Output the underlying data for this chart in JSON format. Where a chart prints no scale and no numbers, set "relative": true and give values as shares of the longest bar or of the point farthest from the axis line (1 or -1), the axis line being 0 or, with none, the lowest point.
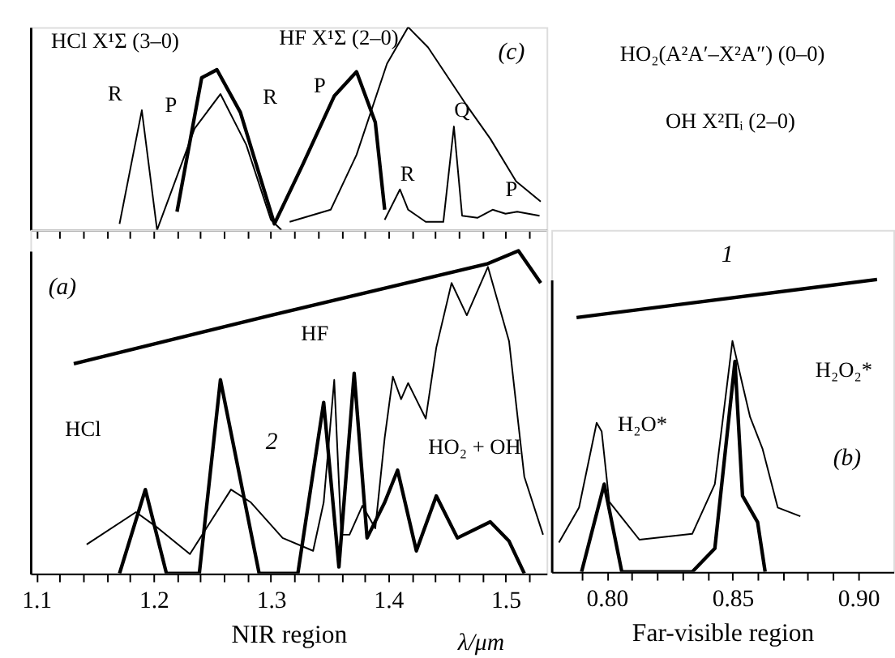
{
  "chart_data": [
    {
      "type": "line",
      "relative": true,
      "tick_labels": false,
      "grid": false,
      "xlim": [
        1.095,
        1.535
      ],
      "xticks": [
        {
          "value": 1.1,
          "label": null
        },
        {
          "value": 1.12,
          "label": null
        },
        {
          "value": 1.14,
          "label": null
        },
        {
          "value": 1.16,
          "label": null
        },
        {
          "value": 1.18,
          "label": null
        },
        {
          "value": 1.2,
          "label": null
        },
        {
          "value": 1.22,
          "label": null
        },
        {
          "value": 1.24,
          "label": null
        },
        {
          "value": 1.26,
          "label": null
        },
        {
          "value": 1.28,
          "label": null
        },
        {
          "value": 1.3,
          "label": null
        },
        {
          "value": 1.32,
          "label": null
        },
        {
          "value": 1.34,
          "label": null
        },
        {
          "value": 1.36,
          "label": null
        },
        {
          "value": 1.38,
          "label": null
        },
        {
          "value": 1.4,
          "label": null
        },
        {
          "value": 1.42,
          "label": null
        },
        {
          "value": 1.44,
          "label": null
        },
        {
          "value": 1.46,
          "label": null
        },
        {
          "value": 1.48,
          "label": null
        },
        {
          "value": 1.5,
          "label": null
        },
        {
          "value": 1.52,
          "label": null
        }
      ],
      "series": [
        {
          "color": "#000000",
          "x": [
            1.171,
            1.19,
            1.203,
            1.235,
            1.257,
            1.279,
            1.3,
            1.309
          ],
          "values": [
            0.03,
            0.59,
            0.0,
            0.5,
            0.67,
            0.42,
            0.05,
            0.0
          ]
        },
        {
          "color": "#000000",
          "x": [
            1.22,
            1.241,
            1.254,
            1.274,
            1.303,
            1.327,
            1.354,
            1.373,
            1.389,
            1.397
          ],
          "values": [
            0.09,
            0.75,
            0.79,
            0.58,
            0.03,
            0.32,
            0.66,
            0.78,
            0.53,
            0.1
          ]
        },
        {
          "color": "#000000",
          "x": [
            1.316,
            1.351,
            1.373,
            1.399,
            1.417,
            1.434,
            1.465,
            1.487,
            1.509,
            1.53
          ],
          "values": [
            0.04,
            0.1,
            0.37,
            0.82,
            1.0,
            0.9,
            0.63,
            0.45,
            0.24,
            0.14
          ]
        },
        {
          "color": "#000000",
          "x": [
            1.397,
            1.41,
            1.417,
            1.432,
            1.447,
            1.456,
            1.463,
            1.476,
            1.489,
            1.5,
            1.51,
            1.529
          ],
          "values": [
            0.05,
            0.2,
            0.1,
            0.04,
            0.04,
            0.51,
            0.07,
            0.06,
            0.1,
            0.08,
            0.09,
            0.07
          ]
        }
      ],
      "annotations": [
        "(c)",
        "HCl X¹Σ (3–0)",
        "HF X¹Σ (2–0)",
        "HO₂(A²A′–X²A″) (0–0)",
        "OH X²Πᵢ (2–0)",
        "R",
        "P",
        "R",
        "P",
        "R",
        "Q",
        "P"
      ]
    },
    {
      "type": "line",
      "relative": true,
      "tick_labels": "x",
      "grid": false,
      "xlabel": "NIR region",
      "xlim": [
        1.095,
        1.535
      ],
      "xticks": [
        1.1,
        {
          "value": 1.12,
          "label": null
        },
        {
          "value": 1.14,
          "label": null
        },
        {
          "value": 1.16,
          "label": null
        },
        {
          "value": 1.18,
          "label": null
        },
        1.2,
        {
          "value": 1.22,
          "label": null
        },
        {
          "value": 1.24,
          "label": null
        },
        {
          "value": 1.26,
          "label": null
        },
        {
          "value": 1.28,
          "label": null
        },
        1.3,
        {
          "value": 1.32,
          "label": null
        },
        {
          "value": 1.34,
          "label": null
        },
        {
          "value": 1.36,
          "label": null
        },
        {
          "value": 1.38,
          "label": null
        },
        1.4,
        {
          "value": 1.42,
          "label": null
        },
        {
          "value": 1.44,
          "label": null
        },
        {
          "value": 1.46,
          "label": null
        },
        {
          "value": 1.48,
          "label": null
        },
        1.5,
        {
          "value": 1.52,
          "label": null
        }
      ],
      "series": [
        {
          "color": "#000000",
          "x": [
            1.132,
            1.3,
            1.485,
            1.511,
            1.53
          ],
          "values": [
            0.65,
            0.8,
            0.96,
            1.0,
            0.9
          ]
        },
        {
          "color": "#000000",
          "x": [
            1.143,
            1.185,
            1.204,
            1.231,
            1.266,
            1.283,
            1.31,
            1.336,
            1.345,
            1.354,
            1.36,
            1.367,
            1.378,
            1.389,
            1.397,
            1.404,
            1.411,
            1.417,
            1.432,
            1.441,
            1.454,
            1.467,
            1.485,
            1.503,
            1.516,
            1.532
          ],
          "values": [
            0.09,
            0.19,
            0.14,
            0.06,
            0.26,
            0.22,
            0.11,
            0.07,
            0.22,
            0.6,
            0.12,
            0.12,
            0.21,
            0.14,
            0.42,
            0.61,
            0.54,
            0.59,
            0.48,
            0.7,
            0.9,
            0.8,
            0.95,
            0.72,
            0.3,
            0.12
          ]
        },
        {
          "color": "#000000",
          "x": [
            1.171,
            1.193,
            1.211,
            1.239,
            1.257,
            1.29,
            1.323,
            1.345,
            1.358,
            1.371,
            1.382,
            1.397,
            1.408,
            1.424,
            1.441,
            1.459,
            1.487,
            1.503,
            1.516
          ],
          "values": [
            0.0,
            0.26,
            0.0,
            0.0,
            0.6,
            0.0,
            0.0,
            0.53,
            0.02,
            0.62,
            0.11,
            0.22,
            0.32,
            0.07,
            0.24,
            0.11,
            0.16,
            0.1,
            0.0
          ]
        }
      ],
      "annotations": [
        "(a)",
        "HCl",
        "HF",
        "2",
        "HO₂ + OH",
        "λ/μm"
      ]
    },
    {
      "type": "line",
      "relative": true,
      "tick_labels": "x",
      "grid": false,
      "xlabel": "Far-visible region",
      "xlim": [
        0.778,
        0.914
      ],
      "xticks": [
        {
          "value": 0.79,
          "label": null
        },
        {
          "value": 0.8,
          "label": "0.80"
        },
        {
          "value": 0.81,
          "label": null
        },
        {
          "value": 0.82,
          "label": null
        },
        {
          "value": 0.83,
          "label": null
        },
        {
          "value": 0.84,
          "label": null
        },
        0.85,
        {
          "value": 0.86,
          "label": null
        },
        {
          "value": 0.87,
          "label": null
        },
        {
          "value": 0.88,
          "label": null
        },
        {
          "value": 0.89,
          "label": null
        },
        {
          "value": 0.9,
          "label": "0.90"
        }
      ],
      "series": [
        {
          "color": "#000000",
          "x": [
            0.788,
            0.9075
          ],
          "values": [
            0.87,
            1.0
          ]
        },
        {
          "color": "#000000",
          "x": [
            0.781,
            0.789,
            0.796,
            0.798,
            0.801,
            0.813,
            0.834,
            0.843,
            0.85,
            0.854,
            0.857,
            0.862,
            0.868,
            0.877
          ],
          "values": [
            0.1,
            0.22,
            0.51,
            0.48,
            0.24,
            0.11,
            0.13,
            0.3,
            0.79,
            0.64,
            0.53,
            0.42,
            0.22,
            0.19
          ]
        },
        {
          "color": "#000000",
          "x": [
            0.79,
            0.799,
            0.806,
            0.834,
            0.843,
            0.851,
            0.854,
            0.86,
            0.863
          ],
          "values": [
            0.0,
            0.3,
            0.0,
            0.0,
            0.08,
            0.72,
            0.26,
            0.17,
            0.0
          ]
        }
      ],
      "annotations": [
        "(b)",
        "H₂O*",
        "H₂O₂*",
        "1"
      ]
    }
  ]
}
